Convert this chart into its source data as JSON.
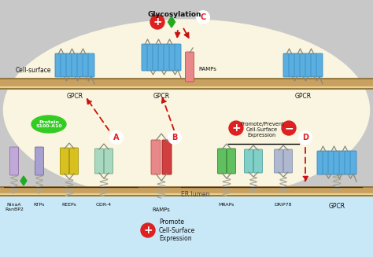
{
  "bg_color_gray": "#c8c8c8",
  "bg_color_cell": "#faf5e0",
  "bg_color_er": "#c8e8f8",
  "membrane_color": "#8a6a30",
  "membrane_light": "#c8a060",
  "blue_helix": "#5aafe0",
  "blue_helix_dark": "#3a8abf",
  "blue_helix_light": "#90cce8",
  "pink_helix": "#e88888",
  "pink_helix_dark": "#c05050",
  "red_helix": "#d04040",
  "red_helix_dark": "#a02020",
  "green_helix": "#60c060",
  "green_helix_dark": "#308830",
  "yellow_helix": "#d8c020",
  "yellow_helix_dark": "#a09000",
  "purple_helix": "#c0a8d8",
  "purple_helix_dark": "#9070a8",
  "lavender_helix": "#a8a0d0",
  "lavender_helix_dark": "#7868a0",
  "mint_helix": "#a8d8c0",
  "mint_helix_dark": "#70a888",
  "cyan_helix": "#80d0c8",
  "cyan_helix_dark": "#50a0a0",
  "gray_helix": "#b0b8d0",
  "gray_helix_dark": "#8090a8",
  "red_arrow": "#cc1111",
  "red_circle_bg": "#dd2020",
  "green_diamond": "#22aa22",
  "loop_color": "#888878",
  "text_black": "#111111",
  "label_A": "A",
  "label_B": "B",
  "label_C": "C",
  "label_D": "D",
  "text_glycosylation": "Glycosylation",
  "text_cell_surface": "Cell-surface",
  "text_gpcr": "GPCR",
  "text_ramps_top": "RAMPs",
  "text_er_lumen": "ER lumen",
  "text_nina": "NinaA\nRanBP2",
  "text_rtps": "RTPs",
  "text_reeps": "REEPs",
  "text_odr4": "ODR-4",
  "text_ramps_bot": "RAMPs",
  "text_mraps": "MRAPs",
  "text_drip78": "DRIP78",
  "text_protein": "Protein\nS100-A10",
  "text_promote": "Promote\nCell-Surface\nExpression",
  "text_promote_prevent": "Promote/Prevent\nCell-Surface\nExpression"
}
